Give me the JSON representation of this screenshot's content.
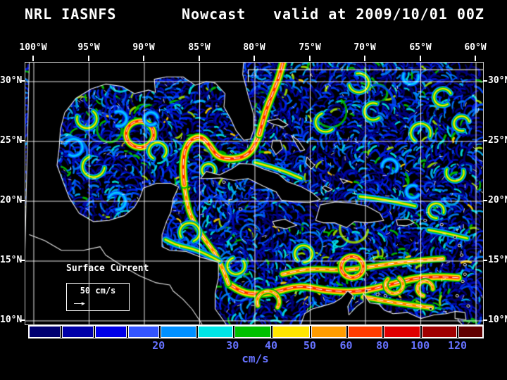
{
  "title": {
    "model": "NRL IASNFS",
    "product": "Nowcast",
    "valid": "valid at 2009/10/01 00Z"
  },
  "map": {
    "lon_labels": [
      "100°W",
      "95°W",
      "90°W",
      "85°W",
      "80°W",
      "75°W",
      "70°W",
      "65°W",
      "60°W"
    ],
    "lat_labels": [
      "30°N",
      "25°N",
      "20°N",
      "15°N",
      "10°N"
    ]
  },
  "legend": {
    "title": "Surface Current",
    "scale_label": "50 cm/s",
    "arrow_icon": "→"
  },
  "colorbar": {
    "units": "cm/s",
    "label_color": "#6672ff",
    "ticks": [
      {
        "label": "20",
        "pos": 0.287
      },
      {
        "label": "30",
        "pos": 0.45
      },
      {
        "label": "40",
        "pos": 0.535
      },
      {
        "label": "50",
        "pos": 0.62
      },
      {
        "label": "60",
        "pos": 0.7
      },
      {
        "label": "80",
        "pos": 0.78
      },
      {
        "label": "100",
        "pos": 0.863
      },
      {
        "label": "120",
        "pos": 0.945
      }
    ],
    "segments": [
      {
        "color": "#000070",
        "width": 7.2
      },
      {
        "color": "#0000a8",
        "width": 7.2
      },
      {
        "color": "#0000e8",
        "width": 7.2
      },
      {
        "color": "#3355ff",
        "width": 7.1
      },
      {
        "color": "#0090ff",
        "width": 8.3
      },
      {
        "color": "#00e6e6",
        "width": 8.0
      },
      {
        "color": "#00c000",
        "width": 8.5
      },
      {
        "color": "#ffe600",
        "width": 8.5
      },
      {
        "color": "#ff9c00",
        "width": 8.0
      },
      {
        "color": "#ff3c00",
        "width": 8.0
      },
      {
        "color": "#e00000",
        "width": 8.3
      },
      {
        "color": "#a00000",
        "width": 8.2
      },
      {
        "color": "#600000",
        "width": 5.5
      }
    ]
  },
  "colors": {
    "background": "#000000",
    "text": "#ffffff",
    "grid": "#ffffff",
    "coastline": "#e6e6e6"
  }
}
